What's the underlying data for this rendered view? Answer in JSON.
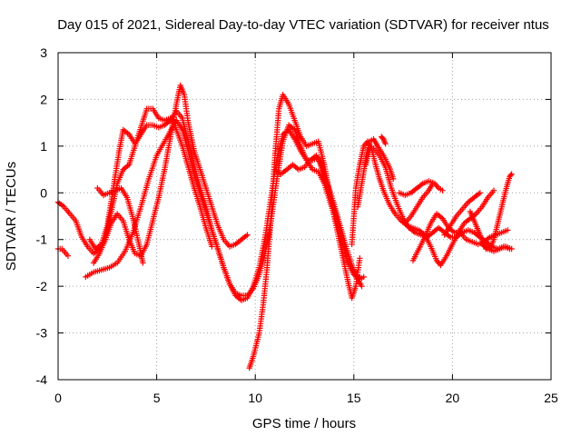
{
  "chart_data": {
    "type": "scatter",
    "title": "Day 015 of 2021, Sidereal Day-to-day VTEC variation (SDTVAR) for receiver ntus",
    "xlabel": "GPS time / hours",
    "ylabel": "SDTVAR / TECUs",
    "xlim": [
      0,
      25
    ],
    "ylim": [
      -4,
      3
    ],
    "x_ticks": [
      "0",
      "5",
      "10",
      "15",
      "20",
      "25"
    ],
    "y_ticks": [
      "-4",
      "-3",
      "-2",
      "-1",
      "0",
      "1",
      "2",
      "3"
    ],
    "grid": true,
    "marker": "+",
    "series_color": "#ff0000",
    "tracks": [
      [
        [
          0.0,
          -0.2
        ],
        [
          0.3,
          -0.3
        ],
        [
          0.6,
          -0.45
        ],
        [
          0.9,
          -0.6
        ],
        [
          1.2,
          -0.95
        ],
        [
          1.5,
          -1.15
        ],
        [
          1.8,
          -1.3
        ],
        [
          2.1,
          -1.2
        ],
        [
          2.4,
          -1.0
        ],
        [
          2.7,
          -0.65
        ],
        [
          3.0,
          -0.45
        ],
        [
          3.3,
          -0.6
        ],
        [
          3.6,
          -1.0
        ],
        [
          3.9,
          -1.3
        ],
        [
          4.2,
          -1.35
        ],
        [
          4.5,
          -1.1
        ],
        [
          4.8,
          -0.6
        ],
        [
          5.1,
          -0.1
        ],
        [
          5.4,
          0.5
        ],
        [
          5.7,
          1.2
        ],
        [
          6.0,
          1.9
        ],
        [
          6.2,
          2.3
        ],
        [
          6.4,
          2.1
        ],
        [
          6.6,
          1.5
        ],
        [
          6.9,
          0.9
        ],
        [
          7.2,
          0.5
        ],
        [
          7.5,
          0.1
        ],
        [
          7.8,
          -0.3
        ],
        [
          8.1,
          -0.7
        ],
        [
          8.4,
          -1.0
        ],
        [
          8.7,
          -1.15
        ],
        [
          9.0,
          -1.1
        ],
        [
          9.3,
          -1.0
        ],
        [
          9.6,
          -0.9
        ]
      ],
      [
        [
          0.0,
          -1.2
        ],
        [
          0.2,
          -1.2
        ],
        [
          0.5,
          -1.35
        ]
      ],
      [
        [
          1.4,
          -1.8
        ],
        [
          1.8,
          -1.7
        ],
        [
          2.2,
          -1.65
        ],
        [
          2.6,
          -1.6
        ],
        [
          3.0,
          -1.5
        ],
        [
          3.4,
          -1.25
        ],
        [
          3.8,
          -0.85
        ],
        [
          4.2,
          -0.3
        ],
        [
          4.6,
          0.3
        ],
        [
          5.0,
          0.8
        ],
        [
          5.4,
          1.1
        ],
        [
          5.8,
          1.4
        ],
        [
          6.0,
          1.55
        ],
        [
          6.3,
          1.35
        ],
        [
          6.6,
          0.9
        ],
        [
          6.9,
          0.4
        ],
        [
          7.2,
          0.0
        ],
        [
          7.5,
          -0.4
        ],
        [
          7.8,
          -0.8
        ],
        [
          8.1,
          -1.2
        ],
        [
          8.4,
          -1.6
        ],
        [
          8.7,
          -1.95
        ],
        [
          9.0,
          -2.15
        ],
        [
          9.3,
          -2.2
        ],
        [
          9.6,
          -2.2
        ],
        [
          9.9,
          -2.05
        ],
        [
          10.2,
          -1.75
        ],
        [
          10.5,
          -1.3
        ],
        [
          10.8,
          -0.6
        ],
        [
          11.1,
          0.3
        ],
        [
          11.4,
          1.1
        ],
        [
          11.7,
          1.45
        ],
        [
          12.0,
          1.35
        ],
        [
          12.3,
          1.0
        ],
        [
          12.6,
          0.7
        ],
        [
          12.9,
          0.5
        ],
        [
          13.2,
          0.45
        ],
        [
          13.5,
          0.2
        ],
        [
          13.8,
          -0.2
        ],
        [
          14.1,
          -0.6
        ],
        [
          14.4,
          -1.0
        ],
        [
          14.7,
          -1.45
        ],
        [
          15.0,
          -1.75
        ],
        [
          15.3,
          -1.85
        ],
        [
          15.5,
          -1.8
        ]
      ],
      [
        [
          1.6,
          -1.0
        ],
        [
          1.9,
          -1.2
        ],
        [
          2.2,
          -1.1
        ],
        [
          2.5,
          -0.7
        ],
        [
          2.8,
          0.1
        ],
        [
          3.1,
          0.9
        ],
        [
          3.3,
          1.35
        ],
        [
          3.6,
          1.25
        ],
        [
          3.9,
          1.05
        ],
        [
          4.2,
          1.25
        ],
        [
          4.5,
          1.45
        ],
        [
          4.8,
          1.45
        ],
        [
          5.1,
          1.4
        ],
        [
          5.4,
          1.45
        ],
        [
          5.7,
          1.55
        ],
        [
          6.0,
          1.75
        ],
        [
          6.3,
          1.6
        ],
        [
          6.6,
          1.1
        ],
        [
          6.9,
          0.6
        ],
        [
          7.2,
          0.1
        ],
        [
          7.5,
          -0.3
        ],
        [
          7.8,
          -0.8
        ],
        [
          8.1,
          -1.2
        ],
        [
          8.4,
          -1.6
        ],
        [
          8.7,
          -1.95
        ],
        [
          9.0,
          -2.2
        ],
        [
          9.3,
          -2.3
        ],
        [
          9.6,
          -2.25
        ],
        [
          9.9,
          -2.0
        ],
        [
          10.2,
          -1.6
        ],
        [
          10.5,
          -0.95
        ],
        [
          10.8,
          -0.1
        ],
        [
          11.1,
          0.75
        ],
        [
          11.4,
          1.25
        ],
        [
          11.7,
          1.35
        ],
        [
          12.0,
          1.15
        ],
        [
          12.3,
          0.9
        ],
        [
          12.6,
          0.7
        ],
        [
          12.9,
          0.7
        ],
        [
          13.2,
          0.75
        ],
        [
          13.5,
          0.35
        ],
        [
          13.8,
          -0.1
        ],
        [
          14.1,
          -0.5
        ],
        [
          14.4,
          -1.0
        ],
        [
          14.7,
          -1.5
        ],
        [
          15.0,
          -1.75
        ],
        [
          15.3,
          -1.8
        ]
      ],
      [
        [
          1.8,
          -1.5
        ],
        [
          2.1,
          -1.3
        ],
        [
          2.4,
          -1.0
        ],
        [
          2.7,
          -0.4
        ],
        [
          3.0,
          0.2
        ],
        [
          3.3,
          0.5
        ],
        [
          3.6,
          0.6
        ],
        [
          3.9,
          1.0
        ],
        [
          4.2,
          1.4
        ],
        [
          4.5,
          1.8
        ],
        [
          4.8,
          1.8
        ],
        [
          5.1,
          1.6
        ],
        [
          5.4,
          1.55
        ],
        [
          5.7,
          1.6
        ],
        [
          6.0,
          1.35
        ],
        [
          6.3,
          1.0
        ],
        [
          6.6,
          0.55
        ],
        [
          6.9,
          0.1
        ],
        [
          7.2,
          -0.3
        ],
        [
          7.5,
          -0.75
        ],
        [
          7.8,
          -1.15
        ]
      ],
      [
        [
          2.0,
          0.1
        ],
        [
          2.3,
          -0.05
        ],
        [
          2.6,
          0.0
        ],
        [
          2.9,
          0.05
        ],
        [
          3.2,
          0.1
        ],
        [
          3.5,
          -0.1
        ],
        [
          3.8,
          -0.55
        ],
        [
          4.1,
          -1.1
        ],
        [
          4.3,
          -1.5
        ]
      ],
      [
        [
          9.7,
          -3.75
        ],
        [
          9.9,
          -3.5
        ],
        [
          10.2,
          -3.0
        ],
        [
          10.4,
          -2.4
        ],
        [
          10.6,
          -1.6
        ],
        [
          10.8,
          -0.5
        ],
        [
          11.0,
          0.8
        ],
        [
          11.2,
          1.8
        ],
        [
          11.4,
          2.1
        ],
        [
          11.7,
          1.9
        ],
        [
          12.0,
          1.55
        ],
        [
          12.3,
          1.2
        ],
        [
          12.6,
          1.0
        ],
        [
          12.9,
          1.05
        ],
        [
          13.2,
          1.1
        ],
        [
          13.5,
          0.6
        ],
        [
          13.8,
          -0.1
        ],
        [
          14.1,
          -0.7
        ],
        [
          14.4,
          -1.3
        ],
        [
          14.7,
          -1.9
        ],
        [
          14.9,
          -2.25
        ],
        [
          15.1,
          -2.0
        ],
        [
          15.3,
          -1.4
        ]
      ],
      [
        [
          11.0,
          0.5
        ],
        [
          11.3,
          0.4
        ],
        [
          11.6,
          0.5
        ],
        [
          11.9,
          0.6
        ],
        [
          12.2,
          0.5
        ],
        [
          12.5,
          0.55
        ],
        [
          12.8,
          0.7
        ],
        [
          13.1,
          0.8
        ],
        [
          13.4,
          0.55
        ],
        [
          13.7,
          0.15
        ],
        [
          14.0,
          -0.25
        ],
        [
          14.3,
          -0.7
        ],
        [
          14.6,
          -1.15
        ],
        [
          14.9,
          -1.55
        ],
        [
          15.2,
          -1.85
        ],
        [
          15.4,
          -2.0
        ]
      ],
      [
        [
          14.9,
          -1.1
        ],
        [
          15.0,
          -0.5
        ],
        [
          15.1,
          0.1
        ],
        [
          15.3,
          0.6
        ],
        [
          15.5,
          1.0
        ],
        [
          15.7,
          1.1
        ],
        [
          15.9,
          0.95
        ],
        [
          16.1,
          0.6
        ],
        [
          16.3,
          0.3
        ],
        [
          16.5,
          0.05
        ],
        [
          16.8,
          -0.25
        ],
        [
          17.1,
          -0.45
        ],
        [
          17.4,
          -0.6
        ],
        [
          17.7,
          -0.7
        ],
        [
          18.0,
          -0.75
        ],
        [
          18.3,
          -0.8
        ],
        [
          18.6,
          -0.9
        ],
        [
          18.9,
          -1.15
        ],
        [
          19.2,
          -1.45
        ],
        [
          19.4,
          -1.55
        ],
        [
          19.7,
          -1.35
        ],
        [
          20.0,
          -1.1
        ],
        [
          20.3,
          -0.85
        ],
        [
          20.6,
          -0.65
        ],
        [
          20.9,
          -0.55
        ],
        [
          21.2,
          -0.45
        ],
        [
          21.5,
          -0.3
        ],
        [
          21.8,
          -0.1
        ],
        [
          22.1,
          0.05
        ]
      ],
      [
        [
          15.2,
          -0.3
        ],
        [
          15.4,
          0.2
        ],
        [
          15.6,
          0.7
        ],
        [
          15.8,
          1.1
        ],
        [
          16.0,
          1.15
        ],
        [
          16.2,
          1.0
        ],
        [
          16.5,
          0.8
        ],
        [
          16.8,
          0.55
        ],
        [
          17.0,
          0.3
        ]
      ],
      [
        [
          15.6,
          0.6
        ],
        [
          15.8,
          0.95
        ],
        [
          16.0,
          0.95
        ],
        [
          16.3,
          0.8
        ],
        [
          16.6,
          0.55
        ],
        [
          16.9,
          0.1
        ],
        [
          17.2,
          -0.25
        ],
        [
          17.5,
          -0.55
        ],
        [
          17.8,
          -0.75
        ],
        [
          18.1,
          -0.85
        ],
        [
          18.4,
          -0.9
        ],
        [
          18.7,
          -0.95
        ],
        [
          19.0,
          -0.85
        ],
        [
          19.3,
          -0.75
        ],
        [
          19.6,
          -0.85
        ],
        [
          19.9,
          -0.95
        ],
        [
          20.2,
          -0.95
        ],
        [
          20.5,
          -0.85
        ],
        [
          20.8,
          -0.8
        ],
        [
          21.1,
          -0.85
        ],
        [
          21.4,
          -0.95
        ],
        [
          21.7,
          -1.05
        ],
        [
          22.0,
          -1.15
        ],
        [
          22.3,
          -1.2
        ],
        [
          22.6,
          -1.15
        ],
        [
          22.9,
          -1.2
        ]
      ],
      [
        [
          16.4,
          1.2
        ],
        [
          16.5,
          1.15
        ],
        [
          16.6,
          1.05
        ]
      ],
      [
        [
          17.3,
          0.0
        ],
        [
          17.6,
          -0.05
        ],
        [
          17.9,
          0.0
        ],
        [
          18.2,
          0.1
        ],
        [
          18.5,
          0.2
        ],
        [
          18.8,
          0.25
        ],
        [
          19.1,
          0.2
        ],
        [
          19.3,
          0.1
        ],
        [
          19.5,
          0.05
        ]
      ],
      [
        [
          17.6,
          -0.65
        ],
        [
          17.9,
          -0.5
        ],
        [
          18.2,
          -0.3
        ],
        [
          18.5,
          -0.1
        ],
        [
          18.8,
          0.05
        ],
        [
          19.0,
          0.2
        ]
      ],
      [
        [
          18.0,
          -1.45
        ],
        [
          18.3,
          -1.2
        ],
        [
          18.6,
          -0.95
        ],
        [
          18.9,
          -0.65
        ],
        [
          19.2,
          -0.45
        ],
        [
          19.5,
          -0.55
        ],
        [
          19.8,
          -0.75
        ],
        [
          20.1,
          -0.85
        ],
        [
          20.4,
          -0.85
        ],
        [
          20.7,
          -1.0
        ],
        [
          21.0,
          -1.05
        ],
        [
          21.3,
          -1.1
        ],
        [
          21.6,
          -1.05
        ],
        [
          21.9,
          -0.95
        ],
        [
          22.2,
          -0.9
        ],
        [
          22.5,
          -0.85
        ],
        [
          22.8,
          -0.8
        ]
      ],
      [
        [
          19.6,
          -0.9
        ],
        [
          19.9,
          -0.7
        ],
        [
          20.2,
          -0.5
        ],
        [
          20.5,
          -0.35
        ],
        [
          20.8,
          -0.2
        ],
        [
          21.1,
          -0.1
        ],
        [
          21.4,
          0.0
        ]
      ],
      [
        [
          20.9,
          -0.4
        ],
        [
          21.1,
          -0.6
        ],
        [
          21.3,
          -0.8
        ],
        [
          21.5,
          -1.0
        ],
        [
          21.7,
          -1.2
        ],
        [
          21.9,
          -1.2
        ],
        [
          22.1,
          -1.0
        ],
        [
          22.3,
          -0.65
        ],
        [
          22.5,
          -0.3
        ],
        [
          22.7,
          0.05
        ],
        [
          22.9,
          0.35
        ],
        [
          23.0,
          0.4
        ]
      ],
      [
        [
          21.5,
          -1.1
        ],
        [
          21.8,
          -1.2
        ],
        [
          22.1,
          -1.25
        ],
        [
          22.4,
          -1.2
        ],
        [
          22.7,
          -1.15
        ],
        [
          23.0,
          -1.2
        ]
      ]
    ]
  }
}
